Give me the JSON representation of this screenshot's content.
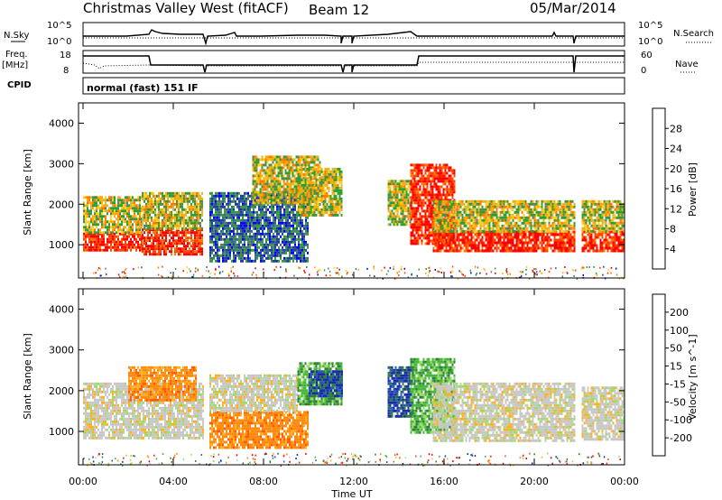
{
  "header": {
    "station": "Christmas Valley West (fitACF)",
    "beam": "Beam 12",
    "date": "05/Mar/2014"
  },
  "top_panels": {
    "nsky_label": "N.Sky",
    "nsearch_label": "N.Search",
    "freq_label_1": "Freq.",
    "freq_label_2": "[MHz]",
    "nave_label": "Nave",
    "cpid_label": "CPID",
    "cpid_text": "normal (fast) 151 IF",
    "noise_ticks": [
      "10^5",
      "10^0"
    ],
    "freq_ticks": [
      "18",
      "8"
    ],
    "nave_ticks": [
      "60",
      "0"
    ]
  },
  "power_colorbar": {
    "title": "Power [dB]",
    "ticks": [
      "28",
      "24",
      "20",
      "16",
      "12",
      "8",
      "4"
    ],
    "colors": [
      "#ff0000",
      "#ff4400",
      "#ff7700",
      "#ffaa00",
      "#ffd21e",
      "#d2b93c",
      "#2ca02c",
      "#4d8a5a",
      "#33698a",
      "#1f3f9a",
      "#0000ff"
    ]
  },
  "velocity_colorbar": {
    "title": "Velocity [m s^-1]",
    "ticks": [
      "200",
      "100",
      "50",
      "15",
      "-15",
      "-50",
      "-100",
      "-200"
    ],
    "colors": [
      "#1a2ea8",
      "#2b56c4",
      "#2f7f3c",
      "#48b83c",
      "#9ddc66",
      "#c8c8c8",
      "#ffb020",
      "#ff8a10",
      "#ff5a05",
      "#ff2000",
      "#e00000"
    ]
  },
  "chart_data": [
    {
      "type": "heatmap",
      "title": "Power",
      "ylabel": "Slant Range [km]",
      "xlabel": "Time UT",
      "x_ticks": [
        "00:00",
        "04:00",
        "08:00",
        "12:00",
        "16:00",
        "20:00",
        "00:00"
      ],
      "y_ticks": [
        "1000",
        "2000",
        "3000",
        "4000"
      ],
      "xlim_hours": [
        0,
        24
      ],
      "ylim_km": [
        180,
        4500
      ],
      "colorbar_range_db": [
        0,
        32
      ],
      "regions": [
        {
          "t0": 0.0,
          "t1": 2.6,
          "r0": 850,
          "r1": 1300,
          "level": "high"
        },
        {
          "t0": 0.0,
          "t1": 2.6,
          "r0": 1300,
          "r1": 2200,
          "level": "mid"
        },
        {
          "t0": 2.6,
          "t1": 5.3,
          "r0": 750,
          "r1": 1400,
          "level": "high"
        },
        {
          "t0": 2.6,
          "t1": 5.3,
          "r0": 1400,
          "r1": 2300,
          "level": "mid"
        },
        {
          "t0": 5.6,
          "t1": 10.0,
          "r0": 600,
          "r1": 2300,
          "level": "low"
        },
        {
          "t0": 7.5,
          "t1": 10.5,
          "r0": 2000,
          "r1": 3200,
          "level": "mid"
        },
        {
          "t0": 9.5,
          "t1": 11.5,
          "r0": 1700,
          "r1": 2900,
          "level": "mid"
        },
        {
          "t0": 13.5,
          "t1": 14.6,
          "r0": 1500,
          "r1": 2600,
          "level": "mid"
        },
        {
          "t0": 14.5,
          "t1": 16.5,
          "r0": 1000,
          "r1": 3000,
          "level": "high"
        },
        {
          "t0": 15.5,
          "t1": 21.8,
          "r0": 850,
          "r1": 1350,
          "level": "high"
        },
        {
          "t0": 15.5,
          "t1": 21.8,
          "r0": 1350,
          "r1": 2100,
          "level": "mid"
        },
        {
          "t0": 22.1,
          "t1": 24.0,
          "r0": 850,
          "r1": 1350,
          "level": "high"
        },
        {
          "t0": 22.1,
          "t1": 24.0,
          "r0": 1350,
          "r1": 2100,
          "level": "mid"
        }
      ]
    },
    {
      "type": "heatmap",
      "title": "Velocity",
      "ylabel": "Slant Range [km]",
      "xlabel": "Time UT",
      "x_ticks": [
        "00:00",
        "04:00",
        "08:00",
        "12:00",
        "16:00",
        "20:00",
        "00:00"
      ],
      "y_ticks": [
        "1000",
        "2000",
        "3000",
        "4000"
      ],
      "xlim_hours": [
        0,
        24
      ],
      "ylim_km": [
        180,
        4500
      ],
      "colorbar_range_ms": [
        -250,
        250
      ],
      "regions": [
        {
          "t0": 0.0,
          "t1": 5.3,
          "r0": 850,
          "r1": 2200,
          "level": "grey"
        },
        {
          "t0": 2.0,
          "t1": 5.0,
          "r0": 1800,
          "r1": 2600,
          "level": "orange"
        },
        {
          "t0": 5.6,
          "t1": 10.0,
          "r0": 600,
          "r1": 1500,
          "level": "orange"
        },
        {
          "t0": 5.6,
          "t1": 9.5,
          "r0": 1500,
          "r1": 2400,
          "level": "grey"
        },
        {
          "t0": 9.5,
          "t1": 11.5,
          "r0": 1700,
          "r1": 2700,
          "level": "green"
        },
        {
          "t0": 10.0,
          "t1": 11.5,
          "r0": 1900,
          "r1": 2500,
          "level": "blue"
        },
        {
          "t0": 13.5,
          "t1": 14.6,
          "r0": 1400,
          "r1": 2600,
          "level": "blue"
        },
        {
          "t0": 14.5,
          "t1": 16.5,
          "r0": 1000,
          "r1": 2800,
          "level": "green"
        },
        {
          "t0": 15.5,
          "t1": 21.8,
          "r0": 800,
          "r1": 2200,
          "level": "grey"
        },
        {
          "t0": 22.1,
          "t1": 24.0,
          "r0": 800,
          "r1": 2100,
          "level": "grey"
        }
      ]
    }
  ]
}
